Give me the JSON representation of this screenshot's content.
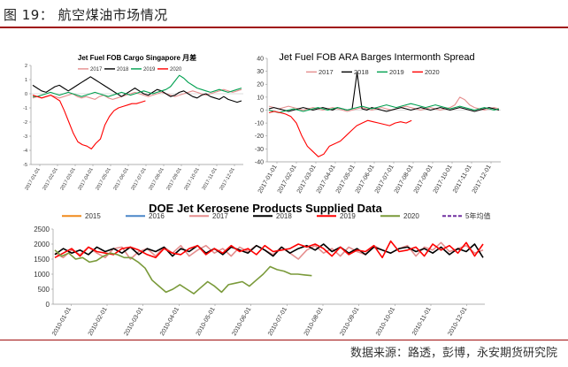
{
  "figure_title": "图 19：      航空煤油市场情况",
  "source": "数据来源：路透，彭博，永安期货研究院",
  "colors": {
    "2015": "#f08a1c",
    "2016": "#4a86c8",
    "2017": "#e58e8e",
    "2018": "#000000",
    "2019": "#ff0000",
    "2020": "#00a050",
    "2020_doe": "#7a9a3a",
    "avg": "#7030a0",
    "c2019_p1": "#00b050"
  },
  "chart_data": [
    {
      "type": "line",
      "title": "Jet Fuel FOB Cargo Singapore 月差",
      "ylim": [
        -5,
        2
      ],
      "y_ticks": [
        "2",
        "1",
        "0",
        "-1",
        "-2",
        "-3",
        "-4",
        "-5"
      ],
      "x_ticks": [
        "2017-01-01",
        "2017-02-01",
        "2017-03-01",
        "2017-04-01",
        "2017-05-01",
        "2017-06-01",
        "2017-07-01",
        "2017-08-01",
        "2017-09-01",
        "2017-10-01",
        "2017-11-01",
        "2017-12-01"
      ],
      "series": [
        {
          "name": "2017",
          "color": "#e58e8e",
          "values": [
            -0.3,
            -0.2,
            -0.3,
            -0.2,
            -0.1,
            -0.2,
            -0.3,
            -0.2,
            -0.1,
            0.0,
            -0.2,
            -0.3,
            -0.2,
            -0.3,
            -0.4,
            -0.2,
            -0.1,
            -0.3,
            -0.4,
            -0.3,
            -0.2,
            -0.1,
            0.0,
            0.1,
            0.0,
            -0.1,
            -0.2,
            -0.1,
            0.0,
            0.1,
            0.0,
            -0.1,
            -0.2,
            -0.1,
            0.0,
            0.1,
            0.2,
            0.1,
            0.0,
            -0.1,
            0.0,
            0.1,
            0.2,
            0.3,
            0.2,
            0.1,
            0.2,
            0.3
          ]
        },
        {
          "name": "2018",
          "color": "#000000",
          "values": [
            0.6,
            0.4,
            0.2,
            0.1,
            0.3,
            0.5,
            0.6,
            0.4,
            0.2,
            0.4,
            0.6,
            0.8,
            1.0,
            1.2,
            1.0,
            0.8,
            0.6,
            0.4,
            0.2,
            0.0,
            -0.2,
            0.0,
            0.2,
            0.4,
            0.2,
            0.0,
            -0.1,
            0.1,
            0.3,
            0.2,
            0.0,
            -0.2,
            -0.1,
            0.1,
            0.2,
            0.0,
            -0.2,
            -0.3,
            -0.1,
            0.0,
            -0.2,
            -0.3,
            -0.4,
            -0.2,
            -0.4,
            -0.5,
            -0.6,
            -0.5
          ]
        },
        {
          "name": "2019",
          "color": "#00a050",
          "values": [
            -0.2,
            -0.2,
            -0.1,
            0.0,
            0.1,
            0.0,
            -0.1,
            0.0,
            0.1,
            0.0,
            -0.1,
            -0.2,
            -0.1,
            0.0,
            0.1,
            0.0,
            -0.1,
            -0.2,
            -0.1,
            0.0,
            0.1,
            0.0,
            -0.1,
            0.0,
            0.1,
            0.2,
            0.1,
            0.0,
            0.1,
            0.2,
            0.3,
            0.5,
            0.9,
            1.3,
            1.1,
            0.8,
            0.6,
            0.4,
            0.3,
            0.2,
            0.1,
            0.2,
            0.3,
            0.2,
            0.1,
            0.2,
            0.3,
            0.4
          ]
        },
        {
          "name": "2020",
          "color": "#ff0000",
          "values": [
            -0.1,
            -0.2,
            -0.3,
            -0.2,
            -0.1,
            -0.3,
            -0.5,
            -1.2,
            -2.0,
            -2.8,
            -3.4,
            -3.6,
            -3.7,
            -3.9,
            -3.5,
            -3.2,
            -2.2,
            -1.6,
            -1.2,
            -1.0,
            -0.9,
            -0.8,
            -0.7,
            -0.7,
            -0.6,
            -0.5
          ]
        }
      ]
    },
    {
      "type": "line",
      "title": "Jet Fuel FOB ARA Barges Intermonth Spread",
      "ylim": [
        -40,
        40
      ],
      "y_ticks": [
        "40",
        "30",
        "20",
        "10",
        "0",
        "-10",
        "-20",
        "-30",
        "-40"
      ],
      "x_ticks": [
        "2017-01-01",
        "2017-02-01",
        "2017-03-01",
        "2017-04-01",
        "2017-05-01",
        "2017-06-01",
        "2017-07-01",
        "2017-08-01",
        "2017-09-01",
        "2017-10-01",
        "2017-11-01",
        "2017-12-01"
      ],
      "series": [
        {
          "name": "2017",
          "color": "#e58e8e",
          "values": [
            3,
            2,
            1,
            2,
            3,
            2,
            1,
            0,
            1,
            2,
            1,
            0,
            1,
            2,
            1,
            0,
            -1,
            0,
            1,
            2,
            1,
            0,
            1,
            2,
            1,
            0,
            1,
            2,
            3,
            2,
            1,
            0,
            1,
            2,
            1,
            0,
            1,
            2,
            4,
            10,
            8,
            4,
            2,
            1,
            0,
            1,
            2,
            1
          ]
        },
        {
          "name": "2018",
          "color": "#000000",
          "values": [
            1,
            2,
            1,
            0,
            -1,
            0,
            1,
            2,
            1,
            0,
            1,
            2,
            1,
            0,
            2,
            1,
            0,
            1,
            29,
            1,
            0,
            2,
            1,
            0,
            -1,
            0,
            1,
            2,
            1,
            0,
            1,
            2,
            1,
            0,
            1,
            2,
            1,
            0,
            1,
            2,
            1,
            0,
            -1,
            0,
            1,
            2,
            1,
            0
          ]
        },
        {
          "name": "2019",
          "color": "#00a050",
          "values": [
            0,
            -1,
            -2,
            -1,
            0,
            1,
            0,
            -1,
            0,
            1,
            2,
            1,
            0,
            1,
            2,
            1,
            0,
            1,
            2,
            3,
            2,
            1,
            2,
            3,
            4,
            3,
            2,
            3,
            4,
            5,
            4,
            3,
            2,
            3,
            4,
            3,
            2,
            1,
            2,
            3,
            2,
            1,
            0,
            1,
            2,
            1,
            0,
            1
          ]
        },
        {
          "name": "2020",
          "color": "#ff0000",
          "values": [
            -2,
            -1,
            -2,
            -3,
            -5,
            -10,
            -20,
            -28,
            -32,
            -36,
            -34,
            -28,
            -26,
            -24,
            -20,
            -16,
            -12,
            -10,
            -8,
            -9,
            -10,
            -11,
            -12,
            -10,
            -9,
            -10,
            -8
          ]
        }
      ]
    },
    {
      "type": "line",
      "title": "DOE Jet Kerosene Products Supplied Data",
      "ylim": [
        0,
        2500
      ],
      "y_ticks": [
        "2500",
        "2000",
        "1500",
        "1000",
        "500",
        "0"
      ],
      "x_ticks": [
        "2010-01-01",
        "2010-02-01",
        "2010-03-01",
        "2010-04-01",
        "2010-05-01",
        "2010-06-01",
        "2010-07-01",
        "2010-08-01",
        "2010-09-01",
        "2010-10-01",
        "2010-11-01",
        "2010-12-01"
      ],
      "series": [
        {
          "name": "2015",
          "color": "#f08a1c",
          "values": []
        },
        {
          "name": "2016",
          "color": "#4a86c8",
          "values": []
        },
        {
          "name": "2017",
          "color": "#e58e8e",
          "values": [
            1700,
            1550,
            1800,
            1650,
            1900,
            1700,
            1550,
            1850,
            1900,
            1500,
            1750,
            1850,
            1600,
            1900,
            1700,
            1950,
            1600,
            1800,
            1950,
            1700,
            1850,
            1600,
            1900,
            1750,
            1950,
            1800,
            1650,
            1900,
            1700,
            1500,
            1800,
            1950,
            1700,
            1850,
            1600,
            1900,
            1750,
            1650,
            1950,
            1800,
            1700,
            1850,
            1950,
            1600,
            1900,
            1800,
            2050,
            1750,
            1850,
            1950,
            1700,
            1800
          ]
        },
        {
          "name": "2018",
          "color": "#000000",
          "values": [
            1650,
            1850,
            1700,
            1800,
            1650,
            1900,
            1750,
            1850,
            1700,
            1900,
            1650,
            1850,
            1750,
            1900,
            1600,
            1850,
            1750,
            1950,
            1700,
            1850,
            1650,
            1900,
            1800,
            1700,
            1950,
            1800,
            1600,
            1900,
            1700,
            1850,
            1950,
            1800,
            2000,
            1750,
            1900,
            1700,
            1850,
            1650,
            1900,
            1800,
            1700,
            1850,
            1900,
            1750,
            1850,
            1700,
            1900,
            1650,
            1850,
            1750,
            2000,
            1550
          ]
        },
        {
          "name": "2019",
          "color": "#ff0000",
          "values": [
            1550,
            1700,
            1850,
            1600,
            1900,
            1750,
            1700,
            1650,
            1850,
            1900,
            1800,
            1650,
            1550,
            1850,
            1700,
            1650,
            1850,
            1950,
            1650,
            1850,
            1700,
            1950,
            1750,
            1850,
            1650,
            1950,
            1750,
            1800,
            1850,
            2000,
            1900,
            2000,
            1850,
            1600,
            1900,
            1650,
            1800,
            1750,
            1950,
            1550,
            2100,
            1750,
            1800,
            1900,
            1600,
            2000,
            1800,
            1950,
            1700,
            2050,
            1600,
            2000
          ]
        },
        {
          "name": "2020",
          "color": "#7a9a3a",
          "values": [
            1800,
            1600,
            1700,
            1500,
            1550,
            1400,
            1450,
            1600,
            1700,
            1650,
            1550,
            1550,
            1400,
            1200,
            800,
            600,
            400,
            500,
            650,
            500,
            350,
            550,
            750,
            600,
            400,
            650,
            700,
            750,
            600,
            800,
            1000,
            1250,
            1150,
            1100,
            1000,
            1000,
            975,
            950
          ]
        },
        {
          "name": "5年均值",
          "color": "#7030a0",
          "values": []
        }
      ]
    }
  ]
}
